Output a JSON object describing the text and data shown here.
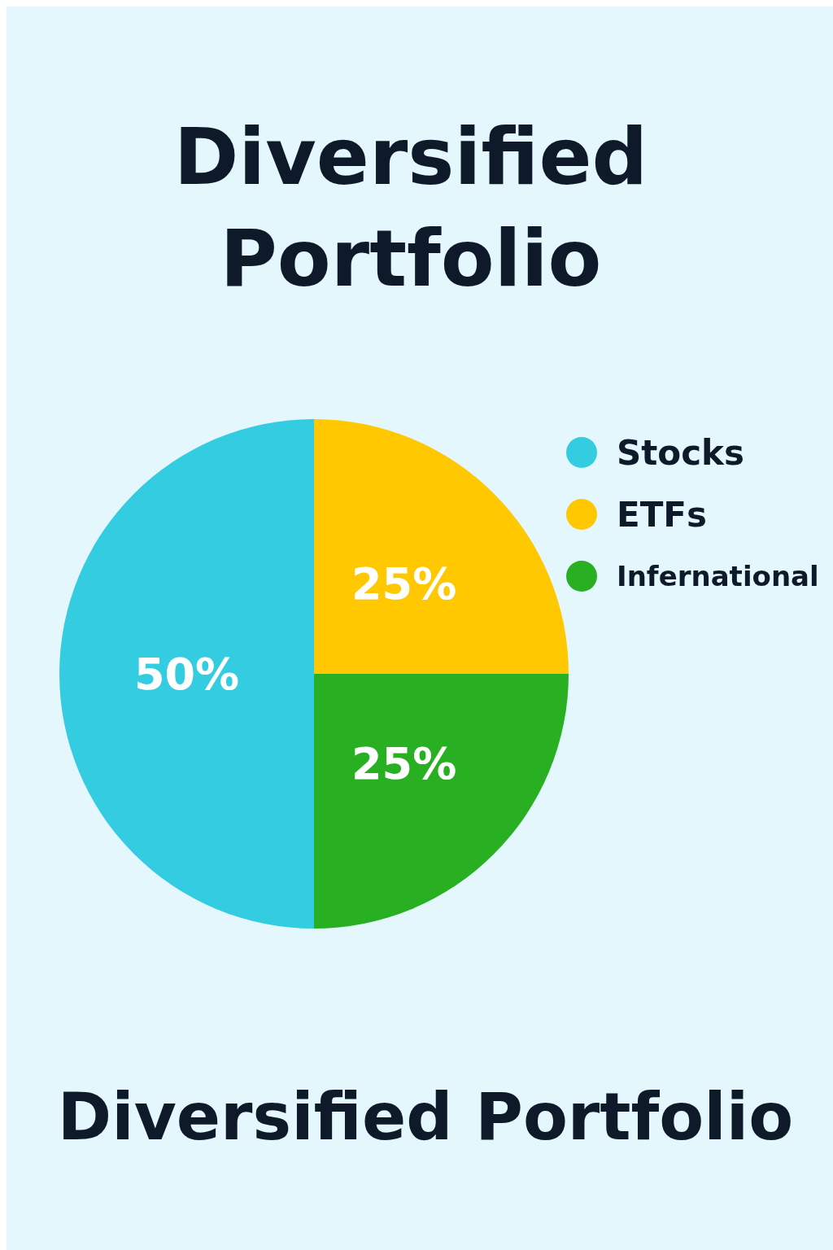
{
  "chart_data": {
    "type": "pie",
    "title": "Diversified Portfolio",
    "categories": [
      "Stocks",
      "ETFs",
      "Infernational"
    ],
    "values": [
      50,
      25,
      25
    ],
    "colors": [
      "#33cce0",
      "#ffc800",
      "#28b022"
    ],
    "value_labels": [
      "50%",
      "25%",
      "25%"
    ],
    "legend": "top right",
    "annotations": [
      "Diversified Portfolio"
    ]
  }
}
